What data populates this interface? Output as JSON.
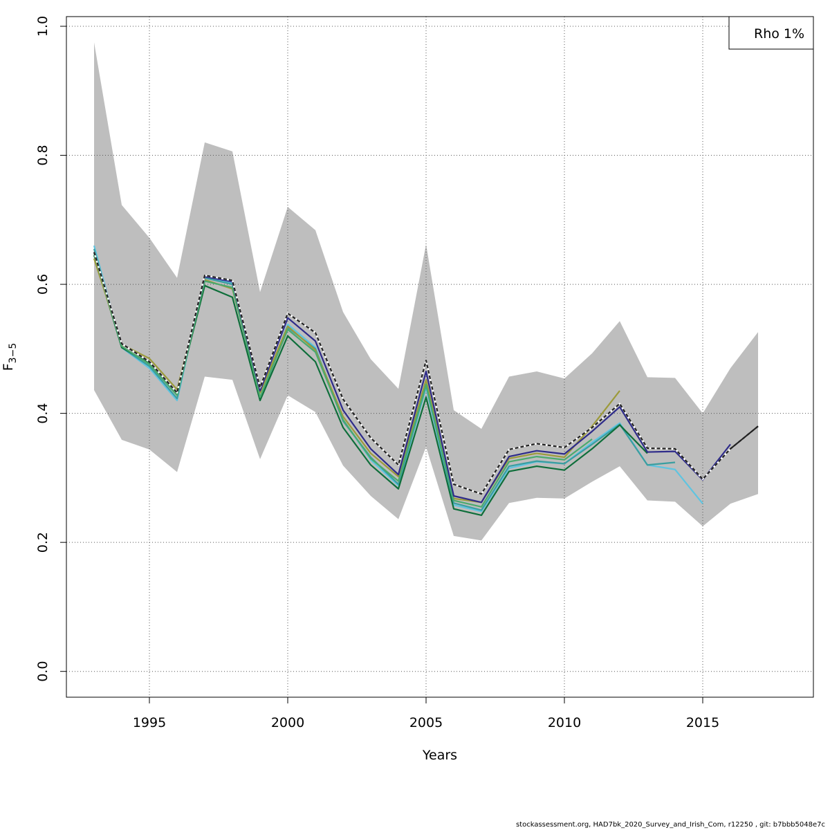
{
  "chart_data": {
    "type": "line",
    "xlabel": "Years",
    "ylabel": "F",
    "ylabel_sub": "3−5",
    "xlim": [
      1992,
      2019
    ],
    "ylim": [
      -0.04,
      1.015
    ],
    "x_ticks": [
      1995,
      2000,
      2005,
      2010,
      2015
    ],
    "y_ticks": [
      0.0,
      0.2,
      0.4,
      0.6,
      0.8,
      1.0
    ],
    "x_tick_labels": [
      "1995",
      "2000",
      "2005",
      "2010",
      "2015"
    ],
    "y_tick_labels": [
      "0.0",
      "0.2",
      "0.4",
      "0.6",
      "0.8",
      "1.0"
    ],
    "grid": true,
    "legend": {
      "position": "top-right",
      "text": "Rho 1%"
    },
    "confidence_band": {
      "color": "#bebebe",
      "x": [
        1993,
        1994,
        1995,
        1996,
        1997,
        1998,
        1999,
        2000,
        2001,
        2002,
        2003,
        2004,
        2005,
        2006,
        2007,
        2008,
        2009,
        2010,
        2011,
        2012,
        2013,
        2014,
        2015,
        2016,
        2017
      ],
      "upper": [
        0.975,
        0.723,
        0.672,
        0.61,
        0.82,
        0.806,
        0.588,
        0.72,
        0.684,
        0.557,
        0.484,
        0.438,
        0.662,
        0.405,
        0.376,
        0.457,
        0.465,
        0.454,
        0.493,
        0.543,
        0.456,
        0.455,
        0.4,
        0.47,
        0.526
      ],
      "lower": [
        0.436,
        0.359,
        0.344,
        0.309,
        0.457,
        0.452,
        0.329,
        0.428,
        0.402,
        0.319,
        0.272,
        0.236,
        0.348,
        0.21,
        0.203,
        0.261,
        0.269,
        0.268,
        0.294,
        0.318,
        0.265,
        0.263,
        0.225,
        0.26,
        0.275
      ]
    },
    "series": [
      {
        "color": "#5fc4e0",
        "dashed": false,
        "x": [
          1993,
          1994,
          1995,
          1996,
          1997,
          1998,
          1999,
          2000,
          2001,
          2002,
          2003,
          2004,
          2005,
          2006,
          2007,
          2008,
          2009,
          2010,
          2011,
          2012,
          2013,
          2014,
          2015
        ],
        "values": [
          0.66,
          0.502,
          0.47,
          0.42,
          0.612,
          0.602,
          0.422,
          0.538,
          0.502,
          0.39,
          0.328,
          0.288,
          0.44,
          0.258,
          0.248,
          0.315,
          0.325,
          0.322,
          0.355,
          0.385,
          0.32,
          0.313,
          0.26
        ]
      },
      {
        "color": "#3a9ea0",
        "dashed": false,
        "x": [
          1993,
          1994,
          1995,
          1996,
          1997,
          1998,
          1999,
          2000,
          2001,
          2002,
          2003,
          2004,
          2005,
          2006,
          2007,
          2008,
          2009,
          2010,
          2011,
          2012,
          2013,
          2014
        ],
        "values": [
          0.655,
          0.502,
          0.473,
          0.423,
          0.61,
          0.6,
          0.422,
          0.533,
          0.5,
          0.388,
          0.332,
          0.29,
          0.443,
          0.261,
          0.25,
          0.318,
          0.326,
          0.322,
          0.352,
          0.383,
          0.32,
          0.324
        ]
      },
      {
        "color": "#0e6e3a",
        "dashed": false,
        "x": [
          1993,
          1994,
          1995,
          1996,
          1997,
          1998,
          1999,
          2000,
          2001,
          2002,
          2003,
          2004,
          2005,
          2006,
          2007,
          2008,
          2009,
          2010,
          2011,
          2012,
          2013
        ],
        "values": [
          0.645,
          0.502,
          0.478,
          0.43,
          0.598,
          0.58,
          0.42,
          0.52,
          0.48,
          0.378,
          0.32,
          0.283,
          0.425,
          0.252,
          0.242,
          0.31,
          0.318,
          0.312,
          0.345,
          0.382,
          0.338
        ]
      },
      {
        "color": "#9c9a3a",
        "dashed": false,
        "x": [
          1993,
          1994,
          1995,
          1996,
          1997,
          1998,
          1999,
          2000,
          2001,
          2002,
          2003,
          2004,
          2005,
          2006,
          2007,
          2008,
          2009,
          2010,
          2011,
          2012
        ],
        "values": [
          0.64,
          0.507,
          0.485,
          0.437,
          0.607,
          0.593,
          0.432,
          0.535,
          0.498,
          0.395,
          0.338,
          0.302,
          0.452,
          0.268,
          0.262,
          0.33,
          0.338,
          0.332,
          0.38,
          0.435
        ]
      },
      {
        "color": "#4aaa6e",
        "dashed": false,
        "x": [
          1993,
          1994,
          1995,
          1996,
          1997,
          1998,
          1999,
          2000,
          2001,
          2002,
          2003,
          2004,
          2005,
          2006,
          2007,
          2008,
          2009,
          2010,
          2011
        ],
        "values": [
          0.648,
          0.504,
          0.476,
          0.428,
          0.605,
          0.595,
          0.425,
          0.53,
          0.495,
          0.39,
          0.33,
          0.295,
          0.445,
          0.265,
          0.255,
          0.325,
          0.333,
          0.328,
          0.36
        ]
      },
      {
        "color": "#2e2b8a",
        "dashed": false,
        "x": [
          1993,
          1994,
          1995,
          1996,
          1997,
          1998,
          1999,
          2000,
          2001,
          2002,
          2003,
          2004,
          2005,
          2006,
          2007,
          2008,
          2009,
          2010,
          2011,
          2012,
          2013,
          2014,
          2015,
          2016
        ],
        "values": [
          0.65,
          0.508,
          0.48,
          0.432,
          0.612,
          0.604,
          0.435,
          0.548,
          0.512,
          0.405,
          0.345,
          0.305,
          0.465,
          0.272,
          0.262,
          0.333,
          0.342,
          0.337,
          0.372,
          0.41,
          0.34,
          0.341,
          0.297,
          0.352
        ]
      },
      {
        "color": "#222222",
        "dashed": true,
        "x": [
          1993,
          1994,
          1995,
          1996,
          1997,
          1998,
          1999,
          2000,
          2001,
          2002,
          2003,
          2004,
          2005,
          2006,
          2007,
          2008,
          2009,
          2010,
          2011,
          2012,
          2013,
          2014,
          2015,
          2016,
          2017
        ],
        "values": [
          0.65,
          0.508,
          0.48,
          0.432,
          0.614,
          0.606,
          0.44,
          0.555,
          0.525,
          0.422,
          0.362,
          0.32,
          0.482,
          0.29,
          0.275,
          0.344,
          0.353,
          0.347,
          0.378,
          0.415,
          0.346,
          0.345,
          0.298,
          0.345,
          0.38
        ]
      },
      {
        "color": "#222222",
        "dashed": false,
        "x": [
          2016,
          2017
        ],
        "values": [
          0.345,
          0.38
        ]
      }
    ]
  },
  "footer": "stockassessment.org, HAD7bk_2020_Survey_and_Irish_Com, r12250 , git: b7bbb5048e7c"
}
